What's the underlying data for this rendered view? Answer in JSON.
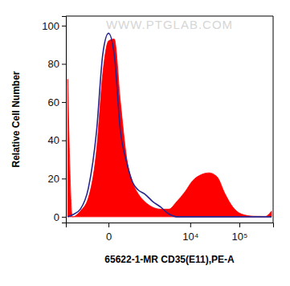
{
  "chart_data": {
    "type": "histogram",
    "annotations": [
      "WWW.PTGLAB.COM"
    ],
    "x_label": "65622-1-MR CD35(E11),PE-A",
    "y_label": "Relative Cell Number",
    "log": "x",
    "x": [
      -1300,
      -1000,
      -620,
      -355,
      -170,
      -70,
      0,
      70,
      170,
      310,
      475,
      685,
      1000,
      1560,
      2380,
      3550,
      5260,
      7730,
      11300,
      16600,
      24200,
      35200,
      51300,
      74300,
      109000,
      190000,
      333000,
      446000
    ],
    "series": [
      {
        "type": "area",
        "color": "#ff0000",
        "values": [
          72,
          0,
          3,
          10,
          35,
          75,
          92,
          93,
          60,
          30,
          18,
          12,
          8,
          5,
          4,
          4,
          8,
          13,
          19,
          22,
          23,
          21,
          12,
          5,
          1.5,
          0.3,
          0.2,
          3
        ]
      },
      {
        "type": "line",
        "color": "#25258f",
        "values": [
          0,
          1,
          4,
          15,
          45,
          85,
          96,
          85,
          45,
          28,
          18,
          14,
          12,
          8,
          5,
          1.5,
          0,
          0,
          0,
          0,
          0,
          0,
          0,
          0,
          0,
          0,
          0,
          0
        ]
      }
    ],
    "xlim": [
      -1435,
      480000
    ],
    "xticks": [
      0,
      {
        "value": 10000,
        "label": "10⁴"
      },
      {
        "value": 100000,
        "label": "10⁵"
      }
    ],
    "ylim": [
      -3,
      105
    ],
    "yticks": [
      0,
      20,
      40,
      60,
      80,
      100
    ],
    "grid": false,
    "tick_labels": true
  }
}
